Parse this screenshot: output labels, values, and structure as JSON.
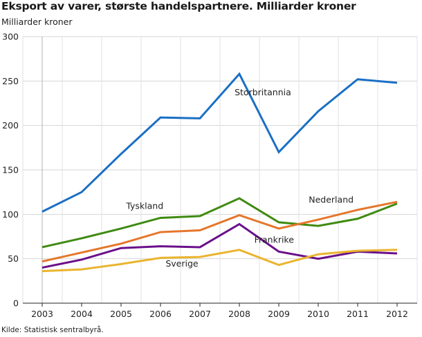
{
  "header": {
    "title": "Eksport av varer, største handelspartnere. Milliarder kroner",
    "unit_label": "Milliarder kroner"
  },
  "footer": {
    "source": "Kilde: Statistisk sentralbyrå."
  },
  "chart_data": {
    "type": "line",
    "title": "Eksport av varer, største handelspartnere. Milliarder kroner",
    "ylabel": "Milliarder kroner",
    "xlabel": "",
    "x": [
      "2003",
      "2004",
      "2005",
      "2006",
      "2007",
      "2008",
      "2009",
      "2010",
      "2011",
      "2012"
    ],
    "ylim": [
      0,
      300
    ],
    "yticks": [
      0,
      50,
      100,
      150,
      200,
      250,
      300
    ],
    "grid": true,
    "legend": "inline labels",
    "series": [
      {
        "name": "Storbritannia",
        "color": "#1a6fc4",
        "values": [
          103,
          125,
          168,
          209,
          208,
          258,
          170,
          216,
          252,
          248
        ]
      },
      {
        "name": "Tyskland",
        "color": "#3f8a12",
        "values": [
          63,
          73,
          84,
          96,
          98,
          118,
          91,
          87,
          95,
          112
        ]
      },
      {
        "name": "Nederland",
        "color": "#e5762b",
        "values": [
          47,
          57,
          67,
          80,
          82,
          99,
          84,
          94,
          105,
          114
        ]
      },
      {
        "name": "Frankrike",
        "color": "#6a0f8a",
        "values": [
          40,
          49,
          62,
          64,
          63,
          89,
          58,
          50,
          58,
          56
        ]
      },
      {
        "name": "Sverige",
        "color": "#eab42e",
        "values": [
          36,
          38,
          44,
          51,
          52,
          60,
          43,
          55,
          59,
          60
        ]
      }
    ]
  }
}
